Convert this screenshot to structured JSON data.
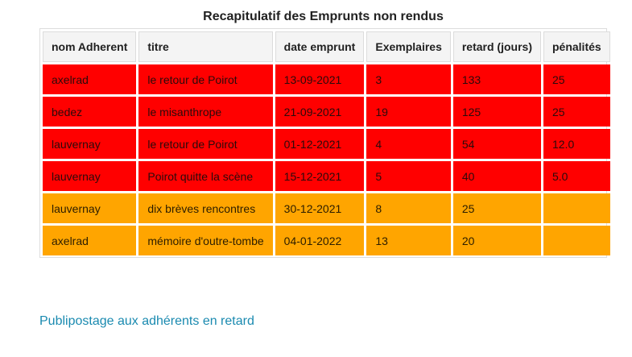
{
  "caption": "Recapitulatif des Emprunts non rendus",
  "table": {
    "headers": [
      "nom Adherent",
      "titre",
      "date emprunt",
      "Exemplaires",
      "retard (jours)",
      "pénalités"
    ],
    "rows": [
      {
        "status": "red",
        "cells": [
          "axelrad",
          "le retour de Poirot",
          "13-09-2021",
          "3",
          "133",
          "25"
        ]
      },
      {
        "status": "red",
        "cells": [
          "bedez",
          "le misanthrope",
          "21-09-2021",
          "19",
          "125",
          "25"
        ]
      },
      {
        "status": "red",
        "cells": [
          "lauvernay",
          "le retour de Poirot",
          "01-12-2021",
          "4",
          "54",
          "12.0"
        ]
      },
      {
        "status": "red",
        "cells": [
          "lauvernay",
          "Poirot quitte la scène",
          "15-12-2021",
          "5",
          "40",
          "5.0"
        ]
      },
      {
        "status": "orange",
        "cells": [
          "lauvernay",
          "dix brèves rencontres",
          "30-12-2021",
          "8",
          "25",
          ""
        ]
      },
      {
        "status": "orange",
        "cells": [
          "axelrad",
          "mémoire d'outre-tombe",
          "04-01-2022",
          "13",
          "20",
          ""
        ]
      }
    ]
  },
  "colors": {
    "red_row": "#ff0000",
    "orange_row": "#ffa500",
    "header_bg": "#f4f4f4",
    "link": "#1a8ab0"
  },
  "link": {
    "label": "Publipostage aux adhérents en retard"
  }
}
